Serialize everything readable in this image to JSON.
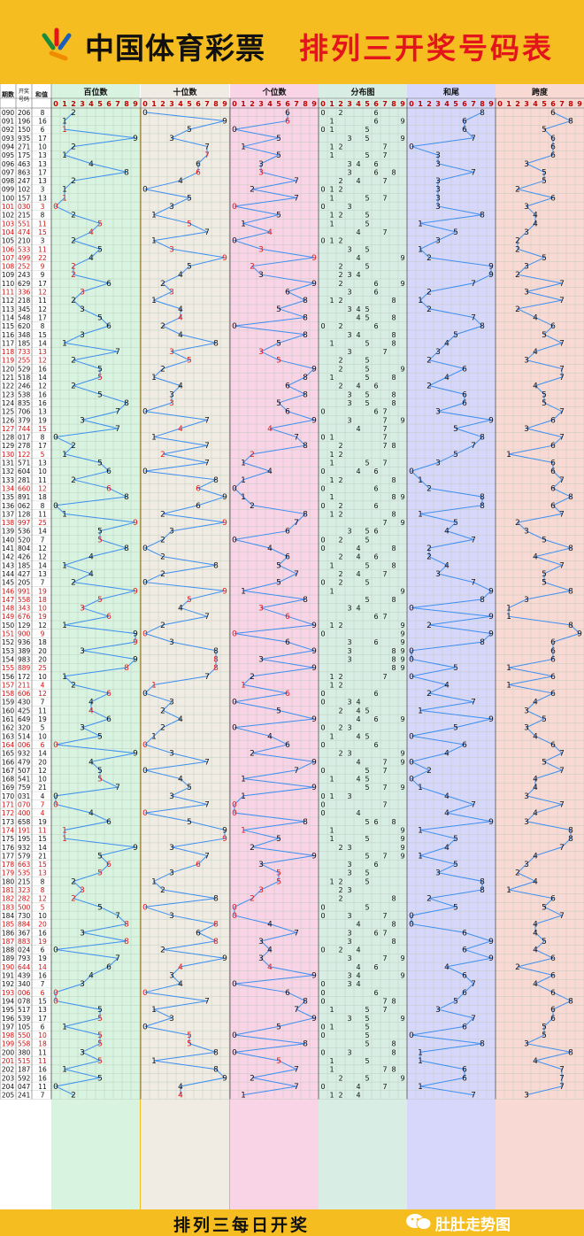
{
  "header": {
    "brand": "中国体育彩票",
    "title": "排列三开奖号码表"
  },
  "footer": {
    "text": "排列三每日开奖",
    "watermark": "肚肚走势图"
  },
  "colors": {
    "background": "#f5bd1f",
    "line": "#3d8ff0",
    "repeat_digit": "#e01818",
    "panel_hundreds": "#d8f3df",
    "panel_tens": "#f0ece3",
    "panel_units": "#f9d3e6",
    "panel_distribution": "#d8ede4",
    "panel_sum_tail": "#d7d7fb",
    "panel_span": "#f9d9d4"
  },
  "chart_data": {
    "type": "table",
    "column_headers": {
      "period": "期数",
      "number": "开奖号码",
      "sum": "和值"
    },
    "panels": [
      "百位数",
      "十位数",
      "个位数",
      "分布图",
      "和尾",
      "跨度"
    ],
    "digits": [
      "0",
      "1",
      "2",
      "3",
      "4",
      "5",
      "6",
      "7",
      "8",
      "9"
    ],
    "rows": [
      [
        "090",
        "206"
      ],
      [
        "091",
        "196"
      ],
      [
        "092",
        "150"
      ],
      [
        "093",
        "935"
      ],
      [
        "094",
        "271"
      ],
      [
        "095",
        "175"
      ],
      [
        "096",
        "463"
      ],
      [
        "097",
        "863"
      ],
      [
        "098",
        "247"
      ],
      [
        "099",
        "102"
      ],
      [
        "100",
        "157"
      ],
      [
        "101",
        "030"
      ],
      [
        "102",
        "215"
      ],
      [
        "103",
        "551"
      ],
      [
        "104",
        "474"
      ],
      [
        "105",
        "210"
      ],
      [
        "106",
        "533"
      ],
      [
        "107",
        "499"
      ],
      [
        "108",
        "252"
      ],
      [
        "109",
        "243"
      ],
      [
        "110",
        "629"
      ],
      [
        "111",
        "336"
      ],
      [
        "112",
        "218"
      ],
      [
        "113",
        "345"
      ],
      [
        "114",
        "548"
      ],
      [
        "115",
        "620"
      ],
      [
        "116",
        "348"
      ],
      [
        "117",
        "185"
      ],
      [
        "118",
        "733"
      ],
      [
        "119",
        "255"
      ],
      [
        "120",
        "529"
      ],
      [
        "121",
        "518"
      ],
      [
        "122",
        "246"
      ],
      [
        "123",
        "538"
      ],
      [
        "124",
        "835"
      ],
      [
        "125",
        "706"
      ],
      [
        "126",
        "379"
      ],
      [
        "127",
        "744"
      ],
      [
        "128",
        "017"
      ],
      [
        "129",
        "278"
      ],
      [
        "130",
        "122"
      ],
      [
        "131",
        "571"
      ],
      [
        "132",
        "604"
      ],
      [
        "133",
        "281"
      ],
      [
        "134",
        "660"
      ],
      [
        "135",
        "891"
      ],
      [
        "136",
        "062"
      ],
      [
        "137",
        "128"
      ],
      [
        "138",
        "997"
      ],
      [
        "139",
        "536"
      ],
      [
        "140",
        "520"
      ],
      [
        "141",
        "804"
      ],
      [
        "142",
        "426"
      ],
      [
        "143",
        "185"
      ],
      [
        "144",
        "427"
      ],
      [
        "145",
        "205"
      ],
      [
        "146",
        "991"
      ],
      [
        "147",
        "558"
      ],
      [
        "148",
        "343"
      ],
      [
        "149",
        "676"
      ],
      [
        "150",
        "129"
      ],
      [
        "151",
        "900"
      ],
      [
        "152",
        "936"
      ],
      [
        "153",
        "389"
      ],
      [
        "154",
        "983"
      ],
      [
        "155",
        "889"
      ],
      [
        "156",
        "172"
      ],
      [
        "157",
        "211"
      ],
      [
        "158",
        "606"
      ],
      [
        "159",
        "430"
      ],
      [
        "160",
        "425"
      ],
      [
        "161",
        "649"
      ],
      [
        "162",
        "320"
      ],
      [
        "163",
        "514"
      ],
      [
        "164",
        "006"
      ],
      [
        "165",
        "932"
      ],
      [
        "166",
        "479"
      ],
      [
        "167",
        "507"
      ],
      [
        "168",
        "541"
      ],
      [
        "169",
        "759"
      ],
      [
        "170",
        "031"
      ],
      [
        "171",
        "070"
      ],
      [
        "172",
        "400"
      ],
      [
        "173",
        "658"
      ],
      [
        "174",
        "191"
      ],
      [
        "175",
        "195"
      ],
      [
        "176",
        "932"
      ],
      [
        "177",
        "579"
      ],
      [
        "178",
        "663"
      ],
      [
        "179",
        "535"
      ],
      [
        "180",
        "215"
      ],
      [
        "181",
        "323"
      ],
      [
        "182",
        "282"
      ],
      [
        "183",
        "500"
      ],
      [
        "184",
        "730"
      ],
      [
        "185",
        "884"
      ],
      [
        "186",
        "367"
      ],
      [
        "187",
        "883"
      ],
      [
        "188",
        "024"
      ],
      [
        "189",
        "793"
      ],
      [
        "190",
        "644"
      ],
      [
        "191",
        "439"
      ],
      [
        "192",
        "340"
      ],
      [
        "193",
        "006"
      ],
      [
        "194",
        "078"
      ],
      [
        "195",
        "517"
      ],
      [
        "196",
        "539"
      ],
      [
        "197",
        "105"
      ],
      [
        "198",
        "550"
      ],
      [
        "199",
        "558"
      ],
      [
        "200",
        "380"
      ],
      [
        "201",
        "515"
      ],
      [
        "202",
        "187"
      ],
      [
        "203",
        "592"
      ],
      [
        "204",
        "047"
      ],
      [
        "205",
        "241"
      ]
    ]
  }
}
